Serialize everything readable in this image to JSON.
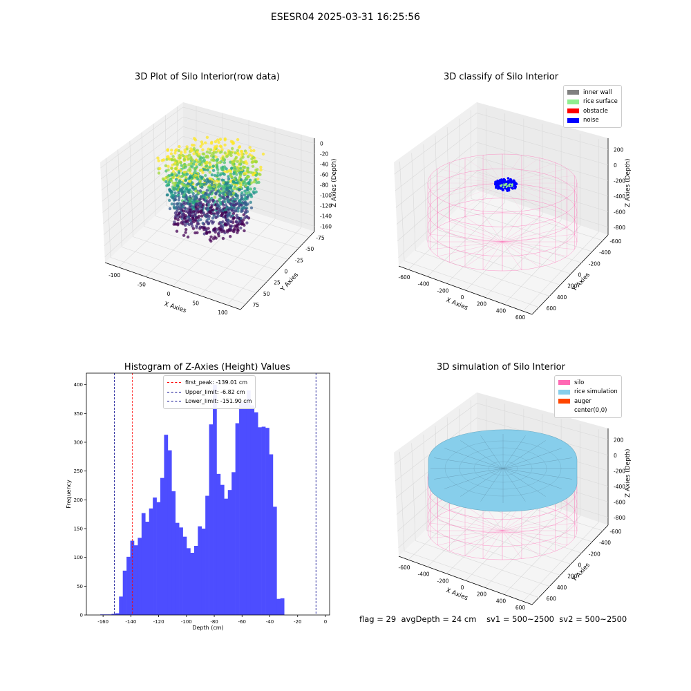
{
  "suptitle": "ESESR04 2025-03-31 16:25:56",
  "footer": {
    "flag": "flag = 29",
    "avgDepth": "avgDepth = 24 cm",
    "sv1": "sv1 = 500~2500",
    "sv2": "sv2 = 500~2500"
  },
  "colors": {
    "hist_bar": "#4d4dff",
    "inner_wall": "#808080",
    "rice_surface": "#90ee90",
    "obstacle": "#ff0000",
    "noise": "#0000ff",
    "silo": "#ff69b4",
    "rice_simulation": "#87ceeb",
    "auger": "#ff4500"
  },
  "chart_data": [
    {
      "type": "scatter",
      "projection": "3d",
      "title": "3D Plot of Silo Interior(row data)",
      "xlabel": "X Axies",
      "ylabel": "Y Axies",
      "zlabel": "Z Axies (Depth)",
      "xticks": [
        "-100",
        "-50",
        "0",
        "50",
        "100"
      ],
      "yticks": [
        "75",
        "50",
        "25",
        "0",
        "-25",
        "-50",
        "-75"
      ],
      "zticks": [
        "0",
        "-20",
        "-40",
        "-60",
        "-80",
        "-100",
        "-120",
        "-140",
        "-160"
      ],
      "colormap": "viridis"
    },
    {
      "type": "scatter",
      "projection": "3d",
      "title": "3D classify of Silo Interior",
      "xlabel": "X Axies",
      "ylabel": "Y Axies",
      "zlabel": "Z Axies (Depth)",
      "xticks": [
        "-600",
        "-400",
        "-200",
        "0",
        "200",
        "400",
        "600"
      ],
      "yticks": [
        "600",
        "400",
        "200",
        "0",
        "-200",
        "-400",
        "-600"
      ],
      "zticks": [
        "200",
        "0",
        "-200",
        "-400",
        "-600",
        "-800"
      ],
      "legend": [
        {
          "label": "inner wall",
          "color": "#808080"
        },
        {
          "label": "rice surface",
          "color": "#90ee90"
        },
        {
          "label": "obstacle",
          "color": "#ff0000"
        },
        {
          "label": "noise",
          "color": "#0000ff"
        }
      ],
      "legend_position": "top-right"
    },
    {
      "type": "bar",
      "title": "Histogram of Z-Axies (Height) Values",
      "xlabel": "Depth (cm)",
      "ylabel": "Frequency",
      "xlim": [
        -172,
        3
      ],
      "ylim": [
        0,
        420
      ],
      "xticks": [
        -160,
        -140,
        -120,
        -100,
        -80,
        -60,
        -40,
        -20,
        0
      ],
      "yticks": [
        0,
        50,
        100,
        150,
        200,
        250,
        300,
        350,
        400
      ],
      "bin_start": -162,
      "bin_width": 2.7,
      "values": [
        1,
        1,
        1,
        2,
        3,
        32,
        77,
        101,
        129,
        121,
        134,
        177,
        162,
        185,
        204,
        196,
        238,
        313,
        286,
        215,
        160,
        152,
        136,
        116,
        108,
        120,
        154,
        150,
        207,
        331,
        400,
        245,
        226,
        202,
        217,
        248,
        333,
        370,
        370,
        390,
        364,
        352,
        326,
        327,
        325,
        279,
        188,
        28,
        29
      ],
      "vlines": [
        {
          "label": "first_peak: -139.01 cm",
          "x": -139.01,
          "color": "#ff0000"
        },
        {
          "label": "Upper_limit: -6.82 cm",
          "x": -6.82,
          "color": "#00008b"
        },
        {
          "label": "Lower_limit: -151.90 cm",
          "x": -151.9,
          "color": "#00008b"
        }
      ],
      "legend_position": "top-center"
    },
    {
      "type": "area",
      "projection": "3d",
      "title": "3D simulation of Silo Interior",
      "xlabel": "X Axies",
      "ylabel": "Y Axies",
      "zlabel": "Z Axies (Depth)",
      "xticks": [
        "-600",
        "-400",
        "-200",
        "0",
        "200",
        "400",
        "600"
      ],
      "yticks": [
        "600",
        "400",
        "200",
        "0",
        "-200",
        "-400",
        "-600"
      ],
      "zticks": [
        "200",
        "0",
        "-200",
        "-400",
        "-600",
        "-800"
      ],
      "legend": [
        {
          "label": "silo",
          "color": "#ff69b4"
        },
        {
          "label": "rice simulation",
          "color": "#87ceeb"
        },
        {
          "label": "auger",
          "color": "#ff4500"
        },
        {
          "label": "center(0,0)",
          "color": ""
        }
      ],
      "legend_position": "top-right"
    }
  ]
}
